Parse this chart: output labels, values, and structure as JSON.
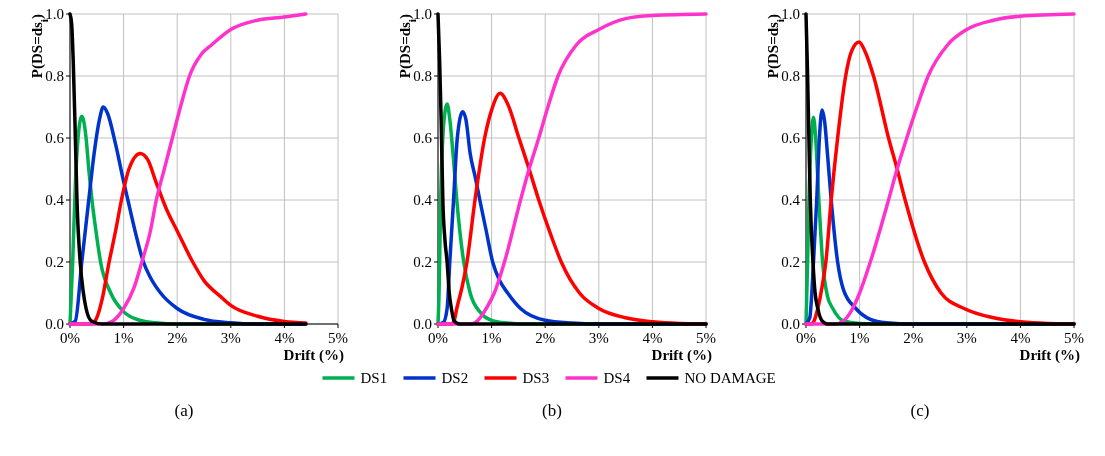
{
  "chart_data": [
    {
      "type": "line",
      "ylabel": "P(DS=ds$_{i}$)",
      "xlabel": "Drift (%)",
      "annotations": [
        "(a)"
      ],
      "xlim": [
        0,
        5
      ],
      "ylim": [
        0,
        1
      ],
      "xticks": [
        {
          "value": 0,
          "label": "0%"
        },
        {
          "value": 1,
          "label": "1%"
        },
        {
          "value": 2,
          "label": "2%"
        },
        {
          "value": 3,
          "label": "3%"
        },
        {
          "value": 4,
          "label": "4%"
        },
        {
          "value": 5,
          "label": "5%"
        }
      ],
      "yticks": [
        {
          "value": 0,
          "label": "0.0"
        },
        {
          "value": 0.2,
          "label": "0.2"
        },
        {
          "value": 0.4,
          "label": "0.4"
        },
        {
          "value": 0.6,
          "label": "0.6"
        },
        {
          "value": 0.8,
          "label": "0.8"
        },
        {
          "value": 1,
          "label": "1.0"
        }
      ],
      "grid": true,
      "legend": "bottom",
      "marker": "none",
      "line_style": "solid",
      "series": [
        {
          "name": "DS1",
          "color": "#00b050",
          "x": [
            0,
            0.05,
            0.1,
            0.15,
            0.22,
            0.3,
            0.35,
            0.41,
            0.5,
            0.57,
            0.76,
            1.0,
            1.3,
            1.6,
            2.0,
            4.4
          ],
          "values": [
            0,
            0.2,
            0.45,
            0.6,
            0.67,
            0.6,
            0.5,
            0.4,
            0.28,
            0.2,
            0.1,
            0.04,
            0.012,
            0.004,
            0,
            0
          ]
        },
        {
          "name": "DS2",
          "color": "#0033cc",
          "x": [
            0,
            0.1,
            0.22,
            0.35,
            0.45,
            0.55,
            0.62,
            0.7,
            0.85,
            1.0,
            1.08,
            1.2,
            1.37,
            1.5,
            1.69,
            2.0,
            2.5,
            3.0,
            3.5,
            4.4
          ],
          "values": [
            0,
            0.01,
            0.2,
            0.4,
            0.55,
            0.66,
            0.7,
            0.68,
            0.58,
            0.46,
            0.4,
            0.31,
            0.2,
            0.15,
            0.1,
            0.05,
            0.015,
            0.004,
            0,
            0
          ]
        },
        {
          "name": "DS3",
          "color": "#ff0000",
          "x": [
            0,
            0.4,
            0.5,
            0.6,
            0.73,
            0.85,
            0.96,
            1.1,
            1.31,
            1.45,
            1.6,
            1.8,
            2.0,
            2.29,
            2.5,
            2.8,
            3.0,
            3.5,
            4.0,
            4.4
          ],
          "values": [
            0,
            0,
            0.02,
            0.08,
            0.2,
            0.3,
            0.4,
            0.5,
            0.55,
            0.53,
            0.46,
            0.37,
            0.3,
            0.2,
            0.14,
            0.09,
            0.06,
            0.025,
            0.008,
            0.003
          ]
        },
        {
          "name": "DS4",
          "color": "#ff33cc",
          "x": [
            0,
            0.6,
            0.8,
            1.0,
            1.2,
            1.34,
            1.5,
            1.61,
            1.76,
            1.91,
            2.06,
            2.23,
            2.45,
            2.64,
            3.0,
            3.5,
            4.0,
            4.4
          ],
          "values": [
            0,
            0,
            0.01,
            0.05,
            0.12,
            0.2,
            0.3,
            0.4,
            0.5,
            0.6,
            0.7,
            0.8,
            0.87,
            0.9,
            0.95,
            0.98,
            0.99,
            1.0
          ]
        },
        {
          "name": "NO DAMAGE",
          "color": "#000000",
          "x": [
            0,
            0.03,
            0.06,
            0.1,
            0.13,
            0.19,
            0.25,
            0.3,
            0.4,
            0.6,
            4.4
          ],
          "values": [
            1.0,
            0.97,
            0.85,
            0.6,
            0.4,
            0.2,
            0.1,
            0.05,
            0.01,
            0,
            0
          ]
        }
      ]
    },
    {
      "type": "line",
      "ylabel": "P(DS=ds$_{i}$)",
      "xlabel": "Drift (%)",
      "annotations": [
        "(b)"
      ],
      "xlim": [
        0,
        5
      ],
      "ylim": [
        0,
        1
      ],
      "xticks": [
        {
          "value": 0,
          "label": "0%"
        },
        {
          "value": 1,
          "label": "1%"
        },
        {
          "value": 2,
          "label": "2%"
        },
        {
          "value": 3,
          "label": "3%"
        },
        {
          "value": 4,
          "label": "4%"
        },
        {
          "value": 5,
          "label": "5%"
        }
      ],
      "yticks": [
        {
          "value": 0,
          "label": "0.0"
        },
        {
          "value": 0.2,
          "label": "0.2"
        },
        {
          "value": 0.4,
          "label": "0.4"
        },
        {
          "value": 0.6,
          "label": "0.6"
        },
        {
          "value": 0.8,
          "label": "0.8"
        },
        {
          "value": 1,
          "label": "1.0"
        }
      ],
      "grid": true,
      "marker": "none",
      "line_style": "solid",
      "series": [
        {
          "color": "#00b050",
          "x": [
            0,
            0.02,
            0.05,
            0.1,
            0.17,
            0.22,
            0.28,
            0.35,
            0.48,
            0.6,
            0.8,
            1.0,
            1.3,
            1.6,
            5.0
          ],
          "values": [
            0,
            0.1,
            0.4,
            0.63,
            0.71,
            0.66,
            0.55,
            0.4,
            0.2,
            0.1,
            0.035,
            0.012,
            0.003,
            0,
            0
          ]
        },
        {
          "color": "#0033cc",
          "x": [
            0,
            0.1,
            0.17,
            0.22,
            0.29,
            0.36,
            0.46,
            0.52,
            0.6,
            0.7,
            0.78,
            0.9,
            1.02,
            1.15,
            1.3,
            1.54,
            2.0,
            2.5,
            3.0,
            5.0
          ],
          "values": [
            0,
            0.005,
            0.05,
            0.2,
            0.4,
            0.6,
            0.685,
            0.66,
            0.55,
            0.47,
            0.4,
            0.3,
            0.2,
            0.14,
            0.1,
            0.05,
            0.012,
            0.003,
            0,
            0
          ]
        },
        {
          "color": "#ff0000",
          "x": [
            0,
            0.25,
            0.3,
            0.35,
            0.45,
            0.54,
            0.69,
            0.87,
            1.0,
            1.16,
            1.3,
            1.51,
            1.7,
            1.88,
            2.1,
            2.3,
            2.64,
            3.0,
            3.5,
            4.0,
            4.5,
            5.0
          ],
          "values": [
            0,
            0,
            0.01,
            0.05,
            0.12,
            0.2,
            0.4,
            0.6,
            0.69,
            0.744,
            0.71,
            0.6,
            0.5,
            0.4,
            0.29,
            0.2,
            0.1,
            0.05,
            0.02,
            0.007,
            0.002,
            0.001
          ]
        },
        {
          "color": "#ff33cc",
          "x": [
            0,
            0.6,
            0.7,
            0.9,
            1.05,
            1.24,
            1.54,
            1.7,
            1.88,
            2.05,
            2.24,
            2.58,
            3.0,
            3.5,
            4.0,
            5.0
          ],
          "values": [
            0,
            0,
            0.005,
            0.05,
            0.1,
            0.2,
            0.4,
            0.5,
            0.6,
            0.7,
            0.8,
            0.9,
            0.95,
            0.985,
            0.995,
            1.0
          ]
        },
        {
          "color": "#000000",
          "x": [
            0,
            0.03,
            0.06,
            0.09,
            0.13,
            0.17,
            0.21,
            0.25,
            0.3,
            0.4,
            5.0
          ],
          "values": [
            1.0,
            0.85,
            0.65,
            0.4,
            0.27,
            0.2,
            0.1,
            0.05,
            0.01,
            0,
            0
          ]
        }
      ]
    },
    {
      "type": "line",
      "ylabel": "P(DS=ds$_{i}$)",
      "xlabel": "Drift (%)",
      "annotations": [
        "(c)"
      ],
      "xlim": [
        0,
        5
      ],
      "ylim": [
        0,
        1
      ],
      "xticks": [
        {
          "value": 0,
          "label": "0%"
        },
        {
          "value": 1,
          "label": "1%"
        },
        {
          "value": 2,
          "label": "2%"
        },
        {
          "value": 3,
          "label": "3%"
        },
        {
          "value": 4,
          "label": "4%"
        },
        {
          "value": 5,
          "label": "5%"
        }
      ],
      "yticks": [
        {
          "value": 0,
          "label": "0.0"
        },
        {
          "value": 0.2,
          "label": "0.2"
        },
        {
          "value": 0.4,
          "label": "0.4"
        },
        {
          "value": 0.6,
          "label": "0.6"
        },
        {
          "value": 0.8,
          "label": "0.8"
        },
        {
          "value": 1,
          "label": "1.0"
        }
      ],
      "grid": true,
      "marker": "none",
      "line_style": "solid",
      "series": [
        {
          "color": "#00b050",
          "x": [
            0,
            0.03,
            0.055,
            0.1,
            0.14,
            0.18,
            0.24,
            0.31,
            0.4,
            0.5,
            0.7,
            1.0,
            1.5,
            5.0
          ],
          "values": [
            0,
            0.2,
            0.4,
            0.6,
            0.667,
            0.6,
            0.4,
            0.2,
            0.09,
            0.05,
            0.01,
            0.002,
            0,
            0
          ]
        },
        {
          "color": "#0033cc",
          "x": [
            0,
            0.07,
            0.14,
            0.2,
            0.25,
            0.3,
            0.35,
            0.4,
            0.47,
            0.59,
            0.7,
            0.93,
            1.2,
            1.5,
            2.0,
            5.0
          ],
          "values": [
            0,
            0.02,
            0.2,
            0.4,
            0.6,
            0.69,
            0.65,
            0.55,
            0.4,
            0.2,
            0.11,
            0.05,
            0.015,
            0.004,
            0,
            0
          ]
        },
        {
          "color": "#ff0000",
          "x": [
            0,
            0.1,
            0.15,
            0.22,
            0.3,
            0.37,
            0.47,
            0.59,
            0.74,
            0.85,
            0.99,
            1.1,
            1.26,
            1.54,
            1.7,
            1.85,
            2.21,
            2.52,
            2.95,
            3.5,
            4.0,
            4.5,
            5.0
          ],
          "values": [
            0,
            0,
            0.01,
            0.05,
            0.12,
            0.2,
            0.4,
            0.6,
            0.8,
            0.88,
            0.91,
            0.88,
            0.8,
            0.6,
            0.5,
            0.4,
            0.2,
            0.1,
            0.05,
            0.02,
            0.007,
            0.002,
            0.001
          ]
        },
        {
          "color": "#ff33cc",
          "x": [
            0,
            0.55,
            0.7,
            0.87,
            1.0,
            1.2,
            1.54,
            1.7,
            1.88,
            2.07,
            2.28,
            2.64,
            3.0,
            3.5,
            4.0,
            5.0
          ],
          "values": [
            0,
            0,
            0.01,
            0.05,
            0.1,
            0.2,
            0.4,
            0.5,
            0.6,
            0.7,
            0.8,
            0.9,
            0.95,
            0.98,
            0.993,
            1.0
          ]
        },
        {
          "color": "#000000",
          "x": [
            0,
            0.03,
            0.06,
            0.08,
            0.13,
            0.17,
            0.22,
            0.3,
            0.4,
            5.0
          ],
          "values": [
            1.0,
            0.8,
            0.55,
            0.4,
            0.2,
            0.1,
            0.05,
            0.01,
            0,
            0
          ]
        }
      ]
    }
  ]
}
